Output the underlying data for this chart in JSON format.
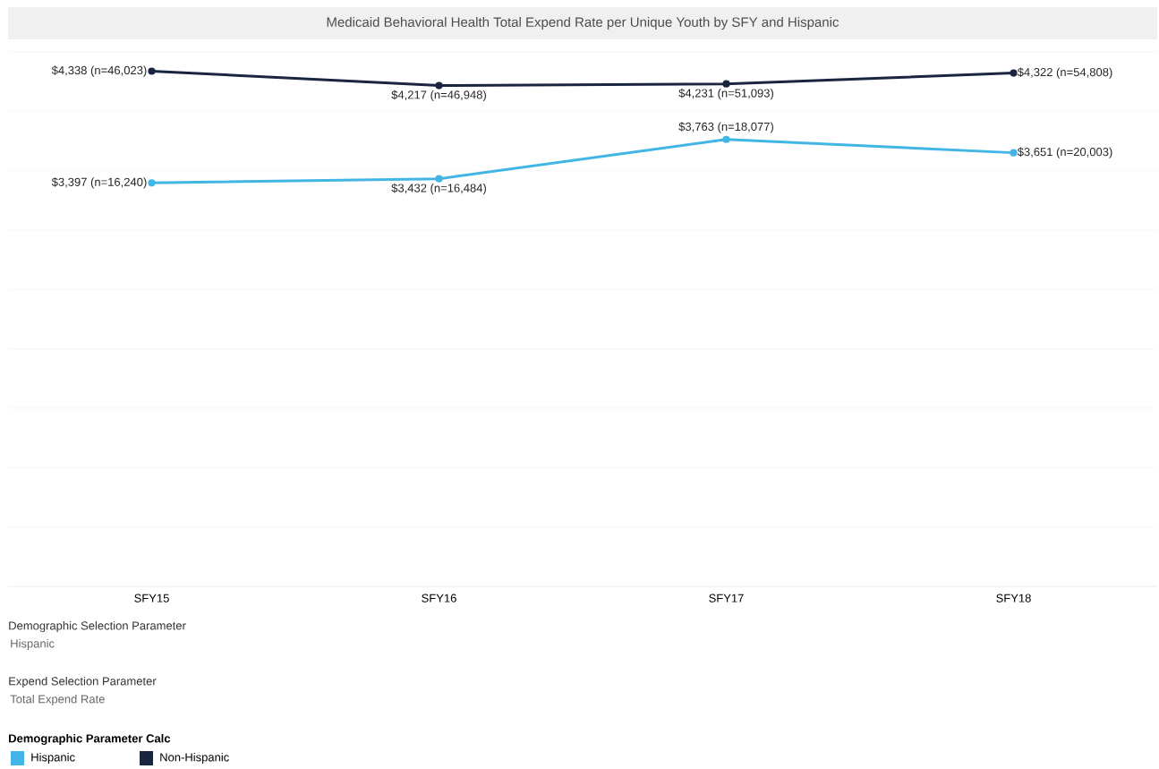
{
  "chart_data": {
    "type": "line",
    "title": "Medicaid Behavioral Health Total Expend Rate per Unique Youth by SFY and Hispanic",
    "categories": [
      "SFY15",
      "SFY16",
      "SFY17",
      "SFY18"
    ],
    "series": [
      {
        "name": "Hispanic",
        "color": "#41b6e6",
        "values": [
          3397,
          3432,
          3763,
          3651
        ],
        "value_labels": [
          "$3,397 (n=16,240)",
          "$3,432 (n=16,484)",
          "$3,763 (n=18,077)",
          "$3,651 (n=20,003)"
        ]
      },
      {
        "name": "Non-Hispanic",
        "color": "#1a2540",
        "values": [
          4338,
          4217,
          4231,
          4322
        ],
        "value_labels": [
          "$4,338 (n=46,023)",
          "$4,217 (n=46,948)",
          "$4,231 (n=51,093)",
          "$4,322 (n=54,808)"
        ]
      }
    ],
    "ylim": [
      0,
      4500
    ],
    "yticks": [
      {
        "value": 0,
        "label": null
      },
      {
        "value": 500,
        "label": null
      },
      {
        "value": 1000,
        "label": null
      },
      {
        "value": 1500,
        "label": null
      },
      {
        "value": 2000,
        "label": null
      },
      {
        "value": 2500,
        "label": null
      },
      {
        "value": 3000,
        "label": null
      },
      {
        "value": 3500,
        "label": null
      },
      {
        "value": 4000,
        "label": null
      },
      {
        "value": 4500,
        "label": null
      }
    ],
    "tick_labels": "x",
    "grid": "y",
    "marker": "circle",
    "line_style": "solid",
    "legend": "bottom",
    "legend_title": "Demographic Parameter Calc",
    "annotations": [
      "Demographic Selection Parameter",
      "Hispanic",
      "Expend Selection Parameter",
      "Total Expend Rate"
    ]
  }
}
